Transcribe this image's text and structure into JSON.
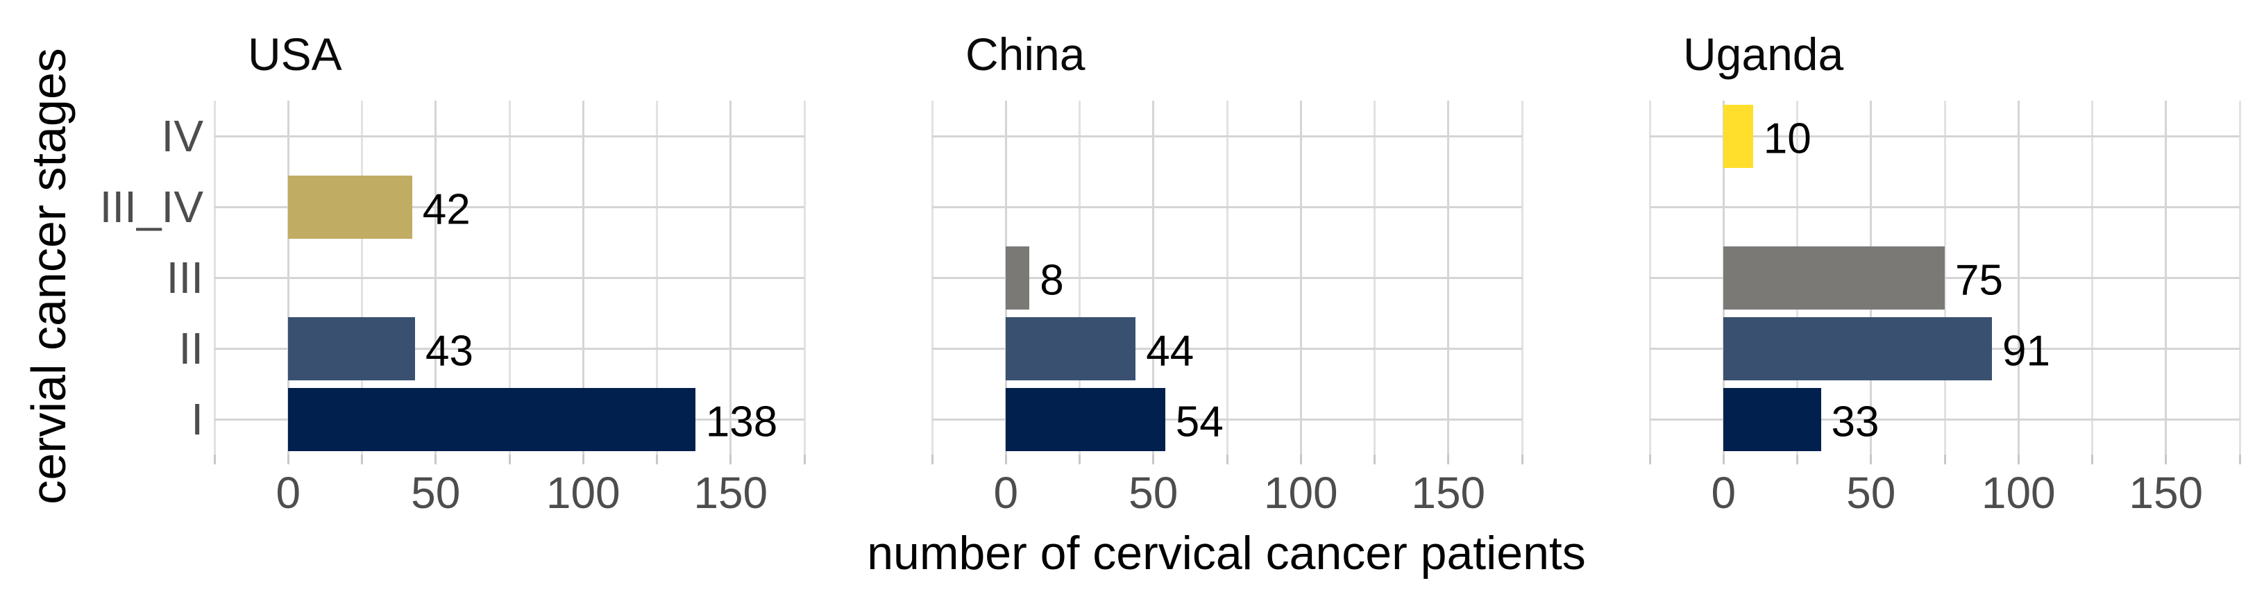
{
  "chart_data": {
    "type": "bar",
    "orientation": "horizontal",
    "facet_by": "country",
    "xlabel": "number of cervical cancer patients",
    "ylabel": "cervial cancer stages",
    "categories_top_to_bottom": [
      "IV",
      "III_IV",
      "III",
      "II",
      "I"
    ],
    "x_ticks": [
      0,
      50,
      100,
      150
    ],
    "x_minor_step": 25,
    "xlim": [
      -25,
      175
    ],
    "grid": "vertical major every 50 with minor every 25; horizontal major at each category",
    "legend": "none",
    "bar_value_labels": true,
    "facets": [
      {
        "label": "USA",
        "bars": [
          {
            "stage": "III_IV",
            "value": 42
          },
          {
            "stage": "II",
            "value": 43
          },
          {
            "stage": "I",
            "value": 138
          }
        ]
      },
      {
        "label": "China",
        "bars": [
          {
            "stage": "III",
            "value": 8
          },
          {
            "stage": "II",
            "value": 44
          },
          {
            "stage": "I",
            "value": 54
          }
        ]
      },
      {
        "label": "Uganda",
        "bars": [
          {
            "stage": "IV",
            "value": 10
          },
          {
            "stage": "III",
            "value": 75
          },
          {
            "stage": "II",
            "value": 91
          },
          {
            "stage": "I",
            "value": 33
          }
        ]
      }
    ],
    "stage_colors": {
      "I": "#02204E",
      "II": "#3A5070",
      "III": "#7B7975",
      "III_IV": "#C1AC63",
      "IV": "#FFDF2B"
    }
  },
  "colors": {
    "background": "#FFFFFF",
    "grid_major": "#D5D5D5",
    "grid_minor": "#E2E2E2",
    "tick_mark": "#C8C8C8",
    "axis_text": "#4D4D4D",
    "heading_text": "#000000"
  }
}
